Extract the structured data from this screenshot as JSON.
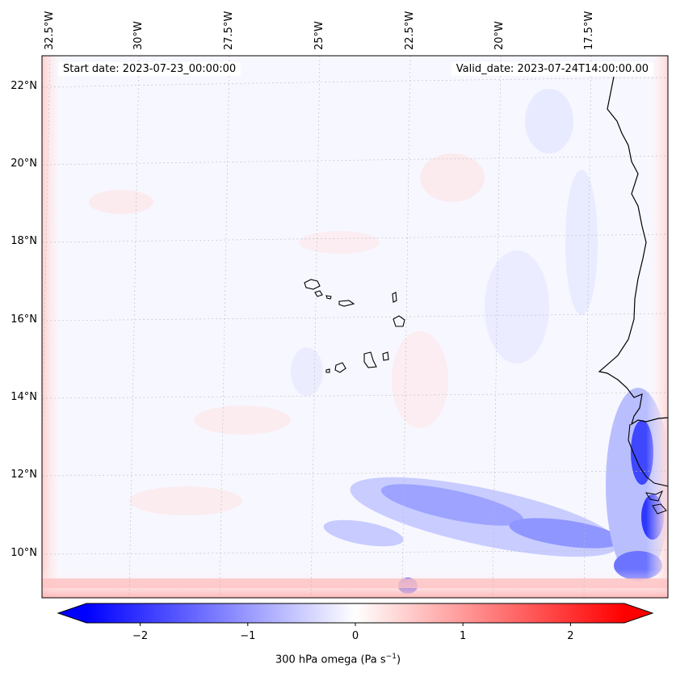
{
  "map": {
    "lon_labels": [
      "32.5°W",
      "30°W",
      "27.5°W",
      "25°W",
      "22.5°W",
      "20°W",
      "17.5°W"
    ],
    "lat_labels": [
      "22°N",
      "20°N",
      "18°N",
      "16°N",
      "14°N",
      "12°N",
      "10°N"
    ],
    "start_date": "Start date: 2023-07-23_00:00:00",
    "valid_date": "Valid_date: 2023-07-24T14:00:00.00"
  },
  "colorbar": {
    "ticks": [
      "−2",
      "−1",
      "0",
      "1",
      "2"
    ],
    "tick_values": [
      -2,
      -1,
      0,
      1,
      2
    ],
    "range": [
      -2.5,
      2.5
    ],
    "label": "300 hPa omega (Pa s",
    "label_exponent": "−1",
    "label_close": ")",
    "cmap": "bwr",
    "colors": {
      "neg": "#0000ff",
      "mid": "#ffffff",
      "pos": "#ff0000"
    }
  }
}
